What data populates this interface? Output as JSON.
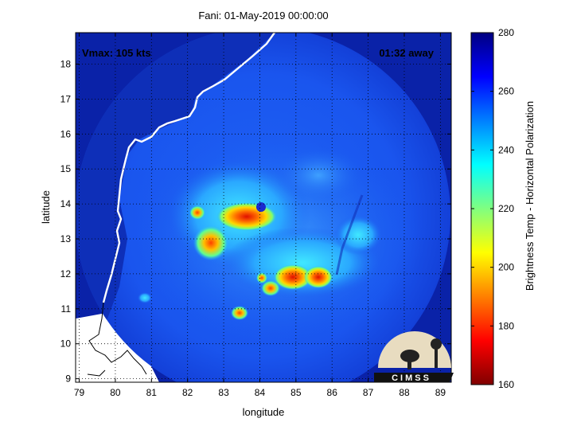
{
  "figure": {
    "title": "Fani: 01-May-2019 00:00:00",
    "vmax_label": "Vmax: 105 kts",
    "time_away_label": "01:32 away",
    "xlabel": "longitude",
    "ylabel": "latitude",
    "colorbar_label": "Brightness Temp - Horizontal Polarization",
    "logo_text": "CIMSS",
    "colors": {
      "background_cold": "#0a22a8",
      "swath_mid": "#1f5cf0",
      "coastline": "#ffffff",
      "outer_coastline": "#000000"
    }
  },
  "chart_data": {
    "type": "heatmap",
    "title": "Fani: 01-May-2019 00:00:00",
    "xlabel": "longitude",
    "ylabel": "latitude",
    "xlim": [
      78.9,
      89.3
    ],
    "ylim": [
      8.9,
      18.9
    ],
    "x_ticks": [
      79,
      80,
      81,
      82,
      83,
      84,
      85,
      86,
      87,
      88,
      89
    ],
    "y_ticks": [
      9,
      10,
      11,
      12,
      13,
      14,
      15,
      16,
      17,
      18
    ],
    "grid": true,
    "swath_center": [
      84.1,
      13.6
    ],
    "swath_radius_deg_lon": 5.0,
    "colorbar": {
      "label": "Brightness Temp - Horizontal Polarization",
      "range": [
        160,
        280
      ],
      "ticks": [
        160,
        180,
        200,
        220,
        240,
        260,
        280
      ],
      "colormap": "jet"
    },
    "features": [
      {
        "name": "eyewall",
        "lon": 83.7,
        "lat": 13.6,
        "tb": 180
      },
      {
        "name": "band-west",
        "lon": 82.6,
        "lat": 12.8,
        "tb": 190
      },
      {
        "name": "band-southeast",
        "lon": 85.4,
        "lat": 11.9,
        "tb": 180
      },
      {
        "name": "cell-south",
        "lon": 83.4,
        "lat": 10.9,
        "tb": 200
      },
      {
        "name": "cell-small",
        "lon": 84.2,
        "lat": 11.8,
        "tb": 195
      },
      {
        "name": "cell-far-west",
        "lon": 80.9,
        "lat": 11.3,
        "tb": 235
      },
      {
        "name": "cell-east",
        "lon": 86.8,
        "lat": 12.9,
        "tb": 235
      }
    ]
  }
}
